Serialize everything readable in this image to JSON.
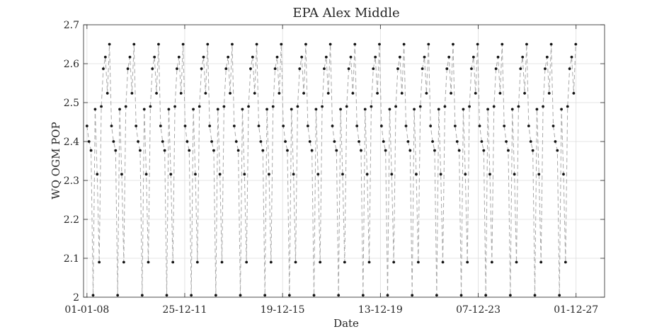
{
  "chart_data": {
    "type": "line",
    "title": "EPA Alex Middle",
    "xlabel": "Date",
    "ylabel": "WQ OGM POP",
    "xlim": [
      "2007-11-11",
      "2029-01-28"
    ],
    "ylim": [
      2.0,
      2.7
    ],
    "yticks": [
      2.0,
      2.1,
      2.2,
      2.3,
      2.4,
      2.5,
      2.6,
      2.7
    ],
    "ytick_labels": [
      "2",
      "2.1",
      "2.2",
      "2.3",
      "2.4",
      "2.5",
      "2.6",
      "2.7"
    ],
    "xticks": [
      "2008-01-01",
      "2011-12-25",
      "2015-12-19",
      "2019-12-13",
      "2023-12-07",
      "2027-12-01"
    ],
    "xtick_labels": [
      "01-01-08",
      "25-12-11",
      "19-12-15",
      "13-12-19",
      "07-12-23",
      "01-12-27"
    ],
    "grid": true,
    "series": [
      {
        "name": "",
        "style": "dashed",
        "marker": "dot",
        "line_color": "#a8a8a8",
        "marker_color": "#141414",
        "start": "2008-01-01",
        "step_days": 30.4167,
        "cycles": 20,
        "cycle_values": [
          2.44,
          2.4,
          2.377,
          2.005,
          2.483,
          2.316,
          2.09,
          2.49,
          2.587,
          2.617,
          2.524,
          2.65
        ]
      }
    ]
  }
}
